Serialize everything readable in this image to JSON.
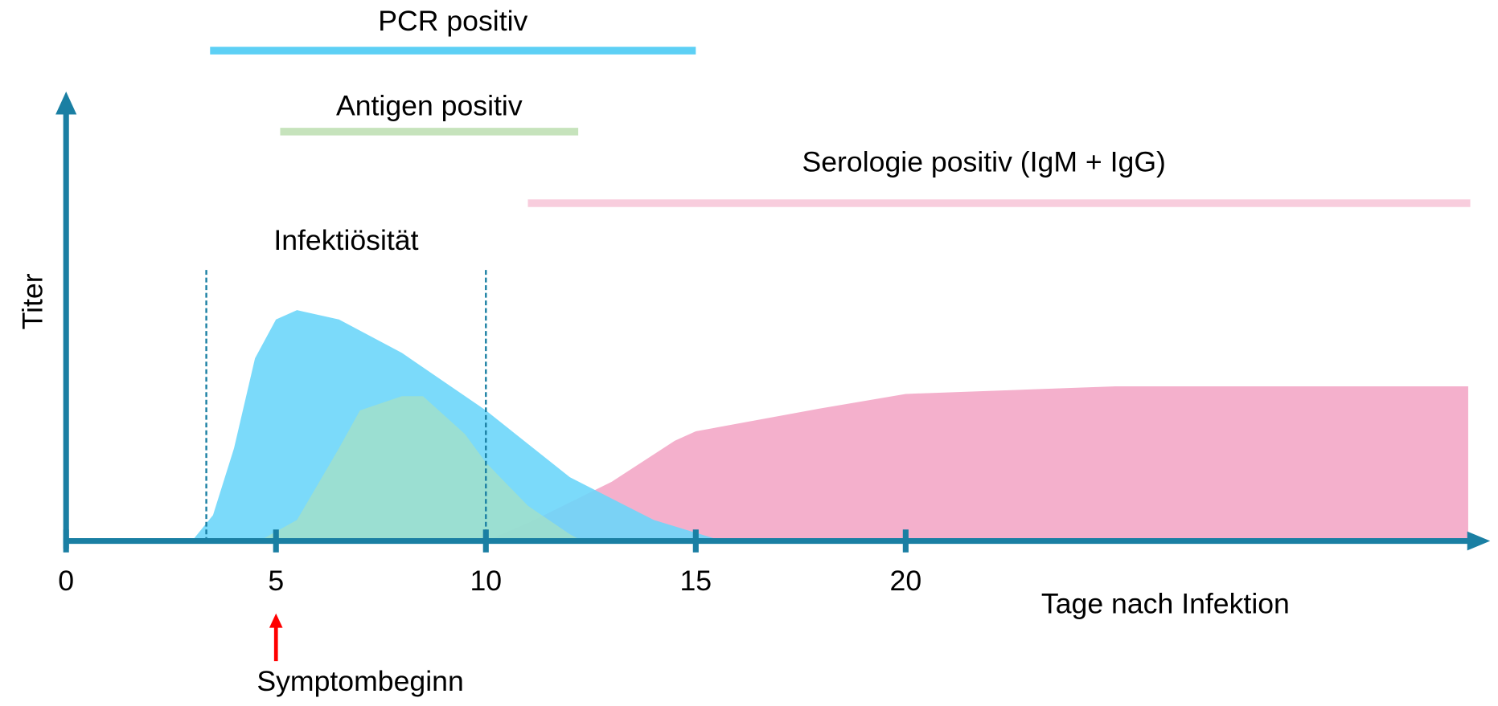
{
  "chart_data": {
    "type": "area",
    "xlabel": "Tage nach Infektion",
    "ylabel": "Titer",
    "xlim": [
      0,
      33.4
    ],
    "ylim": [
      0,
      100
    ],
    "xticks": [
      0,
      5,
      10,
      15,
      20
    ],
    "series": [
      {
        "name": "IgM + IgG",
        "color": "#f4b0cc",
        "x": [
          10,
          11,
          13,
          14.5,
          15,
          18,
          20,
          25,
          33.4
        ],
        "values": [
          0,
          4,
          13.3,
          22.5,
          24.6,
          29.8,
          33,
          34.7,
          34.7
        ]
      },
      {
        "name": "PCR",
        "color": "#6dd6fa",
        "x": [
          3,
          3.5,
          4,
          4.5,
          5,
          5.5,
          6.5,
          8,
          10,
          12,
          14,
          15.5,
          16
        ],
        "values": [
          0,
          5.8,
          20.8,
          41,
          49.7,
          51.8,
          49.7,
          42.2,
          29.3,
          14.3,
          4.7,
          0.4,
          0
        ]
      },
      {
        "name": "Antigen",
        "color": "#a6e0c4",
        "x": [
          4.6,
          5.5,
          6.5,
          7,
          8,
          8.5,
          9.5,
          10,
          11,
          12,
          12.3
        ],
        "values": [
          0,
          4.7,
          20.8,
          29.3,
          32.5,
          32.5,
          24,
          17.6,
          7.9,
          1.5,
          0
        ]
      }
    ],
    "ranges": [
      {
        "label": "PCR positiv",
        "start": 3.43,
        "end": 15,
        "color": "#5dd0f5"
      },
      {
        "label": "Antigen positiv",
        "start": 5.1,
        "end": 12.2,
        "color": "#c6e3bc"
      },
      {
        "label": "Serologie positiv (IgM + IgG)",
        "start": 11,
        "end": 33.45,
        "color": "#f8cddd"
      }
    ],
    "window": {
      "label": "Infektiösität",
      "start": 3.34,
      "end": 10
    },
    "marker": {
      "label": "Symptombeginn",
      "x": 5,
      "color": "#ff0000"
    }
  }
}
